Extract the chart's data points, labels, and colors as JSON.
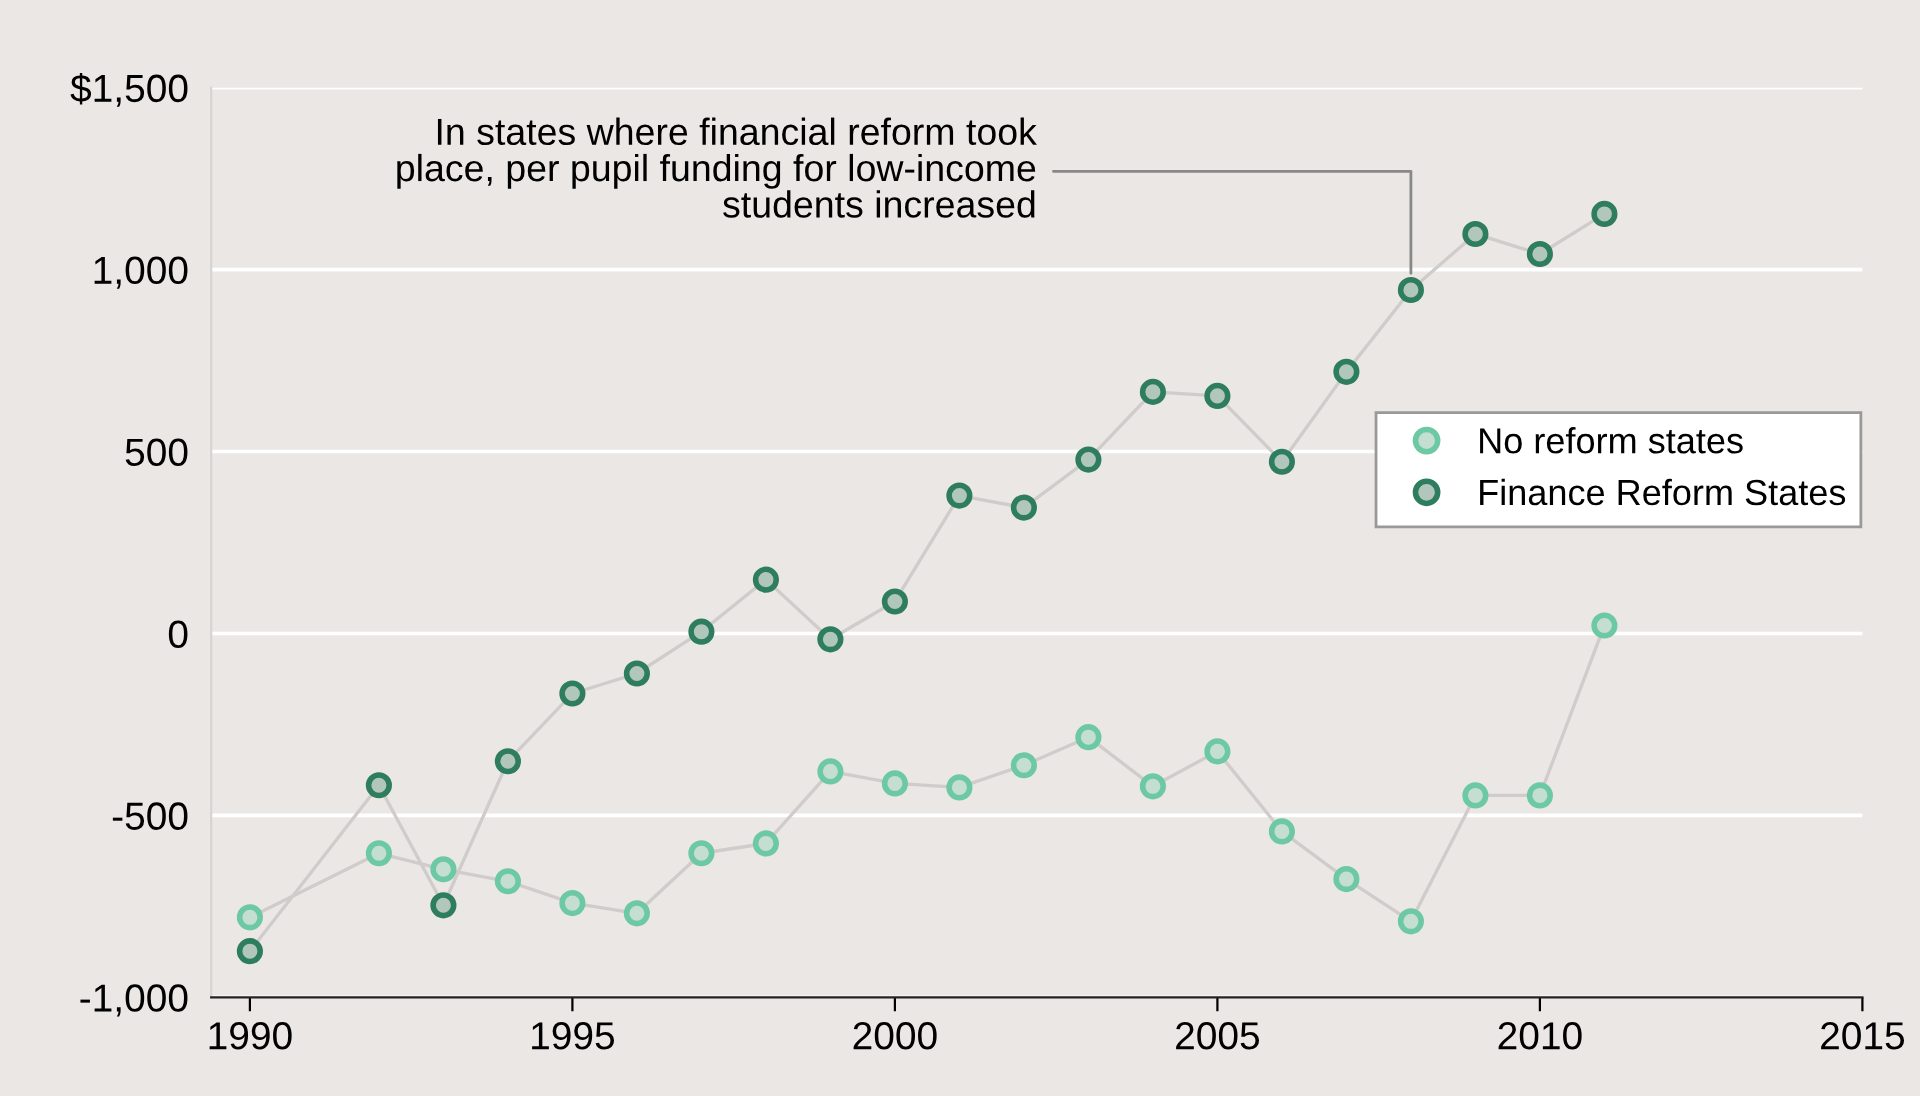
{
  "chart_data": {
    "type": "line",
    "x": [
      1990,
      1992,
      1993,
      1994,
      1995,
      1996,
      1997,
      1998,
      1999,
      2000,
      2001,
      2002,
      2003,
      2004,
      2005,
      2006,
      2007,
      2008,
      2009,
      2010,
      2011
    ],
    "series": [
      {
        "name": "No reform states",
        "color": "#6cc9a4",
        "values": [
          -780,
          -604,
          -648,
          -681,
          -741,
          -769,
          -604,
          -577,
          -379,
          -412,
          -423,
          -362,
          -285,
          -420,
          -324,
          -544,
          -675,
          -791,
          -445,
          -445,
          22
        ]
      },
      {
        "name": "Finance Reform States",
        "color": "#2e7d5e",
        "values": [
          -873,
          -417,
          -747,
          -351,
          -165,
          -110,
          5,
          148,
          -16,
          88,
          379,
          346,
          478,
          664,
          653,
          472,
          719,
          944,
          1098,
          1043,
          1153
        ]
      }
    ],
    "xlim": [
      1989.4,
      2015
    ],
    "xticks": [
      1990,
      1995,
      2000,
      2005,
      2010,
      2015
    ],
    "ylim": [
      -1000,
      1500
    ],
    "yticks": [
      {
        "value": -1000,
        "label": "-1,000"
      },
      {
        "value": -500,
        "label": "-500"
      },
      0,
      500,
      {
        "value": 1000,
        "label": "1,000"
      },
      {
        "value": 1500,
        "label": "$1,500"
      }
    ],
    "grid": "y",
    "legend": "center right",
    "marker": "circle",
    "annotations": [
      {
        "text": "In states where financial reform took\nplace, per pupil funding for low-income\nstudents increased",
        "x": 2008,
        "y": 944
      }
    ]
  }
}
